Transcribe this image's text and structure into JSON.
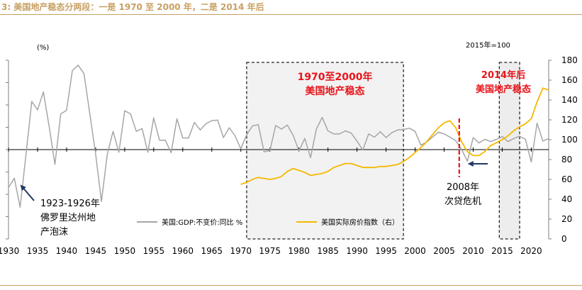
{
  "header": {
    "title": "3: 美国地产稳态分两段：一是 1970 至 2000 年，二是 2014 年后"
  },
  "colors": {
    "accent": "#c8a063",
    "gdp_line": "#a6a6a6",
    "price_line": "#f5b800",
    "annotation_red": "#e8141b",
    "annotation_navy": "#1f3864",
    "shade": "#f2f2f2"
  },
  "chart_data": {
    "type": "line",
    "title": "",
    "left_axis_label": "(%)",
    "right_axis_label": "2015年=100",
    "xlim": [
      1930,
      2023
    ],
    "x_ticks": [
      1930,
      1935,
      1940,
      1945,
      1950,
      1955,
      1960,
      1965,
      1970,
      1975,
      1980,
      1985,
      1990,
      1995,
      2000,
      2005,
      2010,
      2015,
      2020
    ],
    "left_ylim": [
      -20,
      20
    ],
    "right_ylim": [
      0,
      180
    ],
    "right_ticks": [
      0,
      20,
      40,
      60,
      80,
      100,
      120,
      140,
      160,
      180
    ],
    "series": [
      {
        "name": "美国:GDP:不变价:同比 %",
        "axis": "left",
        "x": [
          1930,
          1931,
          1932,
          1933,
          1934,
          1935,
          1936,
          1937,
          1938,
          1939,
          1940,
          1941,
          1942,
          1943,
          1944,
          1945,
          1946,
          1947,
          1948,
          1949,
          1950,
          1951,
          1952,
          1953,
          1954,
          1955,
          1956,
          1957,
          1958,
          1959,
          1960,
          1961,
          1962,
          1963,
          1964,
          1965,
          1966,
          1967,
          1968,
          1969,
          1970,
          1971,
          1972,
          1973,
          1974,
          1975,
          1976,
          1977,
          1978,
          1979,
          1980,
          1981,
          1982,
          1983,
          1984,
          1985,
          1986,
          1987,
          1988,
          1989,
          1990,
          1991,
          1992,
          1993,
          1994,
          1995,
          1996,
          1997,
          1998,
          1999,
          2000,
          2001,
          2002,
          2003,
          2004,
          2005,
          2006,
          2007,
          2008,
          2009,
          2010,
          2011,
          2012,
          2013,
          2014,
          2015,
          2016,
          2017,
          2018,
          2019,
          2020,
          2021,
          2022,
          2023
        ],
        "values": [
          -8.5,
          -6.4,
          -12.9,
          -1.2,
          10.8,
          8.9,
          12.9,
          5.1,
          -3.3,
          8.0,
          8.8,
          17.7,
          18.9,
          17.0,
          8.0,
          -1.0,
          -11.6,
          -1.1,
          4.1,
          -0.6,
          8.7,
          8.0,
          4.1,
          4.7,
          -0.6,
          7.1,
          2.1,
          2.1,
          -0.7,
          6.9,
          2.6,
          2.6,
          6.1,
          4.4,
          5.8,
          6.5,
          6.6,
          2.7,
          4.9,
          3.1,
          0.2,
          3.3,
          5.3,
          5.6,
          -0.5,
          -0.2,
          5.4,
          4.6,
          5.5,
          3.2,
          -0.3,
          2.5,
          -1.8,
          4.6,
          7.2,
          4.2,
          3.5,
          3.5,
          4.2,
          3.7,
          1.9,
          -0.1,
          3.5,
          2.8,
          4.0,
          2.7,
          3.8,
          4.4,
          4.5,
          4.8,
          4.1,
          1.0,
          1.7,
          2.8,
          3.9,
          3.5,
          2.8,
          2.0,
          0.1,
          -2.6,
          2.7,
          1.5,
          2.3,
          1.8,
          2.3,
          2.9,
          1.8,
          2.5,
          3.0,
          2.3,
          -2.8,
          5.9,
          1.9,
          2.5
        ]
      },
      {
        "name": "美国实际房价指数（右）",
        "axis": "right",
        "x": [
          1970,
          1971,
          1972,
          1973,
          1974,
          1975,
          1976,
          1977,
          1978,
          1979,
          1980,
          1981,
          1982,
          1983,
          1984,
          1985,
          1986,
          1987,
          1988,
          1989,
          1990,
          1991,
          1992,
          1993,
          1994,
          1995,
          1996,
          1997,
          1998,
          1999,
          2000,
          2001,
          2002,
          2003,
          2004,
          2005,
          2006,
          2007,
          2008,
          2009,
          2010,
          2011,
          2012,
          2013,
          2014,
          2015,
          2016,
          2017,
          2018,
          2019,
          2020,
          2021,
          2022,
          2023
        ],
        "values": [
          55,
          57,
          60,
          62,
          61,
          60,
          61,
          63,
          68,
          71,
          69,
          67,
          64,
          65,
          66,
          68,
          72,
          74,
          76,
          76,
          74,
          72,
          72,
          72,
          73,
          73,
          74,
          75,
          78,
          82,
          87,
          92,
          98,
          105,
          112,
          117,
          119,
          112,
          98,
          88,
          84,
          84,
          88,
          94,
          97,
          100,
          104,
          109,
          113,
          116,
          121,
          138,
          152,
          150
        ]
      }
    ],
    "legend": {
      "position": "bottom-center",
      "entries": [
        "美国:GDP:不变价:同比 %",
        "美国实际房价指数（右）"
      ]
    },
    "annotations": {
      "box1_label": [
        "1970至2000年",
        "美国地产稳态"
      ],
      "box1_range": [
        1971,
        1998
      ],
      "box2_label": [
        "2014年后",
        "美国地产稳态"
      ],
      "box2_range": [
        2014.5,
        2018
      ],
      "crisis_label": [
        "2008年",
        "次贷危机"
      ],
      "crisis_year": 2007.6,
      "bubble_label": [
        "1923-1926年",
        "佛罗里达州地",
        "产泡沫"
      ]
    }
  }
}
